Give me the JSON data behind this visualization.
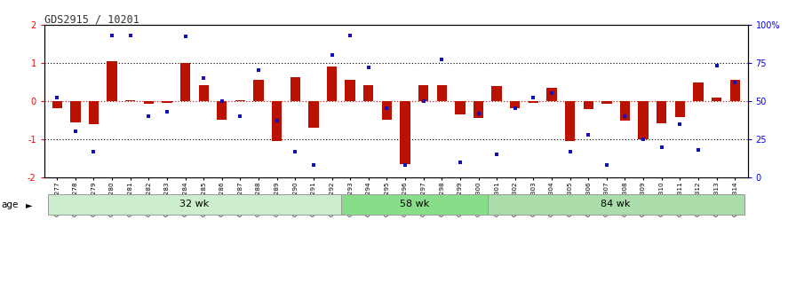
{
  "title": "GDS2915 / 10201",
  "samples": [
    "GSM97277",
    "GSM97278",
    "GSM97279",
    "GSM97280",
    "GSM97281",
    "GSM97282",
    "GSM97283",
    "GSM97284",
    "GSM97285",
    "GSM97286",
    "GSM97287",
    "GSM97288",
    "GSM97289",
    "GSM97290",
    "GSM97291",
    "GSM97292",
    "GSM97293",
    "GSM97294",
    "GSM97295",
    "GSM97296",
    "GSM97297",
    "GSM97298",
    "GSM97299",
    "GSM97300",
    "GSM97301",
    "GSM97302",
    "GSM97303",
    "GSM97304",
    "GSM97305",
    "GSM97306",
    "GSM97307",
    "GSM97308",
    "GSM97309",
    "GSM97310",
    "GSM97311",
    "GSM97312",
    "GSM97313",
    "GSM97314"
  ],
  "log_ratio": [
    -0.2,
    -0.55,
    -0.6,
    1.05,
    0.03,
    -0.08,
    -0.05,
    1.0,
    0.42,
    -0.48,
    0.03,
    0.55,
    -1.05,
    0.62,
    -0.7,
    0.9,
    0.55,
    0.42,
    -0.5,
    -1.65,
    0.42,
    0.42,
    -0.35,
    -0.45,
    0.38,
    -0.18,
    -0.05,
    0.35,
    -1.05,
    -0.22,
    -0.08,
    -0.52,
    -1.0,
    -0.58,
    -0.42,
    0.48,
    0.08,
    0.55
  ],
  "percentile_rank": [
    52,
    30,
    17,
    93,
    93,
    40,
    43,
    92,
    65,
    50,
    40,
    70,
    37,
    17,
    8,
    80,
    93,
    72,
    45,
    8,
    50,
    77,
    10,
    42,
    15,
    45,
    52,
    55,
    17,
    28,
    8,
    40,
    25,
    20,
    35,
    18,
    73,
    62
  ],
  "groups": [
    {
      "label": "32 wk",
      "start": 0,
      "end": 16,
      "color": "#cceecc"
    },
    {
      "label": "58 wk",
      "start": 16,
      "end": 24,
      "color": "#88dd88"
    },
    {
      "label": "84 wk",
      "start": 24,
      "end": 38,
      "color": "#aaddaa"
    }
  ],
  "bar_color": "#bb1100",
  "dot_color": "#1111bb",
  "ylim_left": [
    -2,
    2
  ],
  "ylim_right": [
    0,
    100
  ],
  "yticks_left": [
    -2,
    -1,
    0,
    1,
    2
  ],
  "yticks_right": [
    0,
    25,
    50,
    75,
    100
  ],
  "yticklabels_right": [
    "0",
    "25",
    "50",
    "75",
    "100%"
  ],
  "zero_line_color": "#cc0000",
  "bg_color": "#ffffff",
  "bar_width": 0.55
}
